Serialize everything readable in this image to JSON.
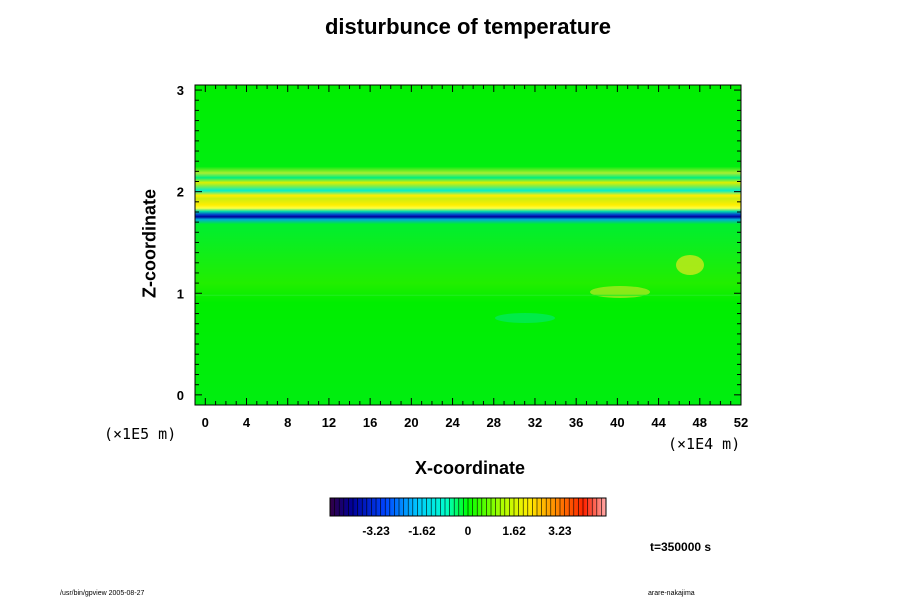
{
  "chart_data": {
    "type": "heatmap",
    "title": "disturbunce of temperature",
    "xlabel": "X-coordinate",
    "ylabel": "Z-coordinate",
    "x_scale_note": "(×1E4 m)",
    "y_scale_note": "(×1E5 m)",
    "xlim": [
      -1,
      52
    ],
    "ylim": [
      -0.1,
      3.05
    ],
    "x_ticks": [
      0,
      4,
      8,
      12,
      16,
      20,
      24,
      28,
      32,
      36,
      40,
      44,
      48,
      52
    ],
    "y_ticks": [
      0,
      1,
      2,
      3
    ],
    "colorbar": {
      "ticks": [
        "-3.23",
        "-1.62",
        "0",
        "1.62",
        "3.23"
      ],
      "tick_values": [
        -3.23,
        -1.62,
        0,
        1.62,
        3.23
      ],
      "range": [
        -4.85,
        4.85
      ]
    },
    "time_label": "t=350000 s",
    "features": [
      {
        "z": 1.78,
        "value": -3.5,
        "note": "cold band"
      },
      {
        "z": 1.88,
        "value": 1.8,
        "note": "warm band"
      },
      {
        "z": 2.0,
        "value": 1.6,
        "note": "warm band"
      },
      {
        "z": 2.1,
        "value": 1.2,
        "note": "warm band"
      }
    ]
  },
  "footer": {
    "left": "/usr/bin/gpview 2005-08-27",
    "right": "arare-nakajima"
  },
  "colors": {
    "background_field": "#00ee00",
    "cold": "#0000cc",
    "warm": "#ffee00",
    "hot": "#ff4400"
  }
}
